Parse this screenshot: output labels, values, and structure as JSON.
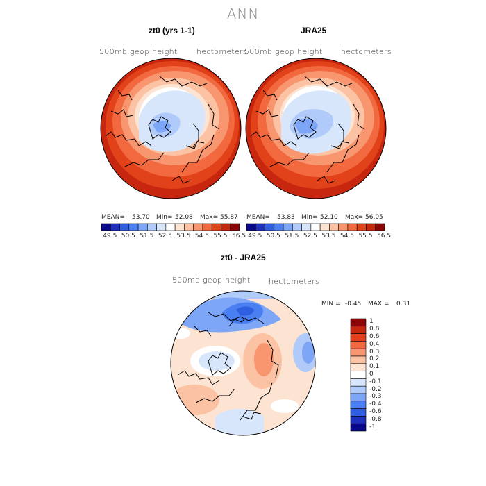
{
  "title": "ANN",
  "panels": [
    {
      "title": "zt0 (yrs 1-1)",
      "field_label": "500mb geop height",
      "units": "hectometers",
      "stats": {
        "mean_label": "MEAN=",
        "mean": "53.70",
        "min_label": "Min=",
        "min": "52.08",
        "max_label": "Max=",
        "max": "55.87"
      }
    },
    {
      "title": "JRA25",
      "field_label": "500mb geop height",
      "units": "hectometers",
      "stats": {
        "mean_label": "MEAN=",
        "mean": "53.83",
        "min_label": "Min=",
        "min": "52.10",
        "max_label": "Max=",
        "max": "56.05"
      }
    },
    {
      "title": "zt0 - JRA25",
      "field_label": "500mb geop height",
      "units": "hectometers",
      "stats": {
        "min_label": "MIN =",
        "min": "-0.45",
        "max_label": "MAX =",
        "max": "0.31"
      }
    }
  ],
  "colorbar_top": {
    "ticks": [
      "49.5",
      "50.5",
      "51.5",
      "52.5",
      "53.5",
      "54.5",
      "55.5",
      "56.5"
    ],
    "colors": [
      "#08088a",
      "#1f2fbd",
      "#2f5ee0",
      "#4a7ff2",
      "#7ea6f7",
      "#b0cbf9",
      "#d8e6fb",
      "#ffffff",
      "#fde4d2",
      "#fbc2a4",
      "#f7966f",
      "#f2683f",
      "#e24219",
      "#c7260f",
      "#8b0707"
    ]
  },
  "colorbar_diff": {
    "ticks": [
      "1",
      "0.8",
      "0.6",
      "0.4",
      "0.3",
      "0.2",
      "0.1",
      "0",
      "-0.1",
      "-0.2",
      "-0.3",
      "-0.4",
      "-0.6",
      "-0.8",
      "-1"
    ],
    "colors": [
      "#8b0707",
      "#c7260f",
      "#e24219",
      "#f2683f",
      "#f7966f",
      "#fbc2a4",
      "#fde4d2",
      "#ffffff",
      "#d8e6fb",
      "#b0cbf9",
      "#7ea6f7",
      "#4a7ff2",
      "#2f5ee0",
      "#1f2fbd",
      "#08088a"
    ]
  }
}
